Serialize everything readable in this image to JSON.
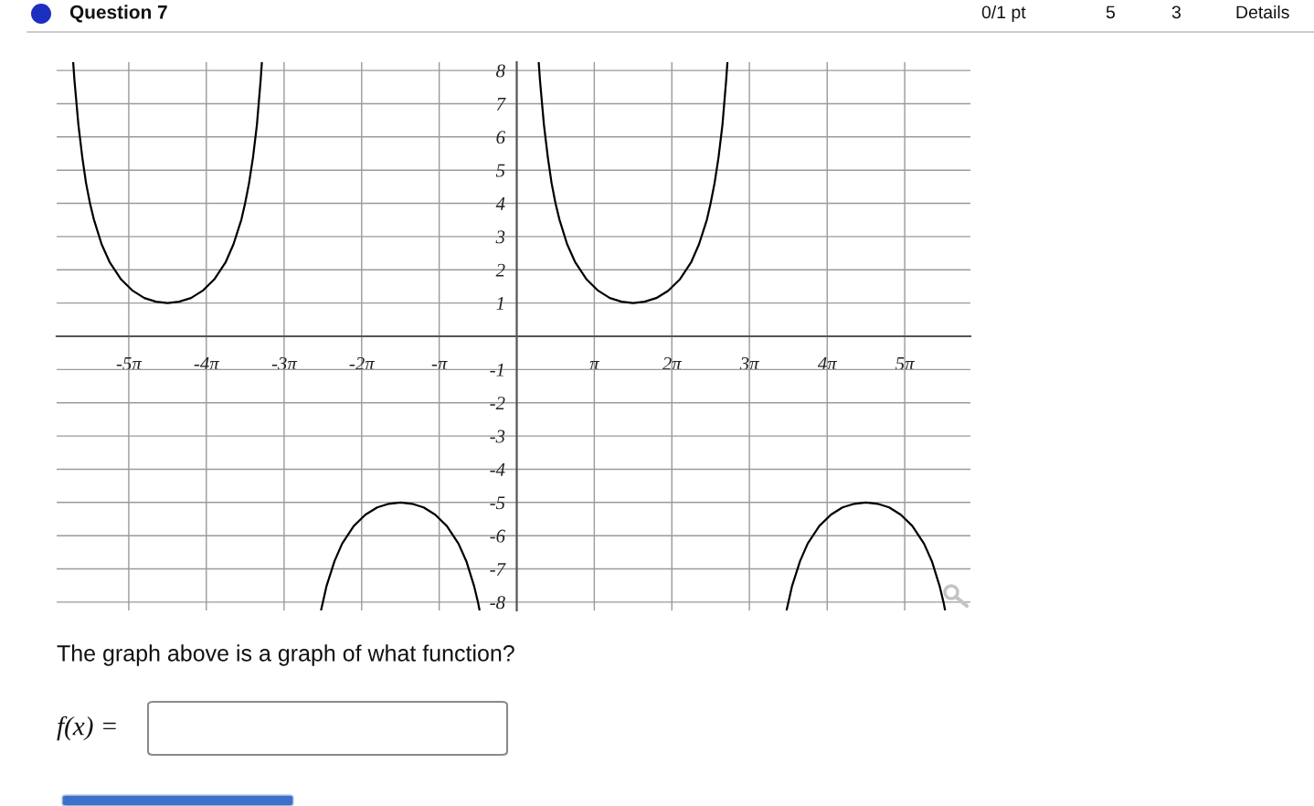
{
  "chart_data": {
    "type": "line",
    "xlim": [
      -18.63,
      18.37
    ],
    "ylim": [
      -8.25,
      8.25
    ],
    "xticks": [
      {
        "value": -15.71,
        "label": "-5π"
      },
      {
        "value": -12.57,
        "label": "-4π"
      },
      {
        "value": -9.42,
        "label": "-3π"
      },
      {
        "value": -6.28,
        "label": "-2π"
      },
      {
        "value": -3.14,
        "label": "-π"
      },
      {
        "value": 3.14,
        "label": "π"
      },
      {
        "value": 6.28,
        "label": "2π"
      },
      {
        "value": 9.42,
        "label": "3π"
      },
      {
        "value": 12.57,
        "label": "4π"
      },
      {
        "value": 15.71,
        "label": "5π"
      }
    ],
    "yticks": [
      -8,
      -7,
      -6,
      -5,
      -4,
      -3,
      -2,
      -1,
      1,
      2,
      3,
      4,
      5,
      6,
      7,
      8
    ],
    "grid": true,
    "series": [
      {
        "color": "#000000",
        "x": [
          -17.96,
          -17.91,
          -17.75,
          -17.59,
          -17.44,
          -17.28,
          -17.12,
          -16.81,
          -16.49,
          -16.02,
          -15.55,
          -15.08,
          -14.61,
          -14.14,
          -13.67,
          -13.19,
          -12.72,
          -12.25,
          -11.78,
          -11.47,
          -11.15,
          -11.0,
          -10.84,
          -10.68,
          -10.52,
          -10.37,
          -10.32
        ],
        "values": [
          8.24,
          7.71,
          6.37,
          5.38,
          4.61,
          4,
          3.51,
          2.77,
          2.24,
          1.71,
          1.37,
          1.15,
          1.04,
          1,
          1.04,
          1.15,
          1.37,
          1.71,
          2.24,
          2.77,
          3.51,
          4,
          4.61,
          5.38,
          6.37,
          7.71,
          8.24
        ]
      },
      {
        "color": "#000000",
        "x": [
          -7.92,
          -7.85,
          -7.7,
          -7.38,
          -7.07,
          -6.6,
          -6.13,
          -5.65,
          -5.18,
          -4.71,
          -4.24,
          -3.77,
          -3.3,
          -2.83,
          -2.36,
          -2.04,
          -1.73,
          -1.57,
          -1.51
        ],
        "values": [
          -8.23,
          -8,
          -7.51,
          -6.77,
          -6.24,
          -5.71,
          -5.37,
          -5.15,
          -5.04,
          -5,
          -5.04,
          -5.15,
          -5.37,
          -5.71,
          -6.24,
          -6.77,
          -7.51,
          -8,
          -8.23
        ]
      },
      {
        "color": "#000000",
        "x": [
          0.89,
          0.94,
          1.1,
          1.26,
          1.41,
          1.57,
          1.73,
          2.04,
          2.36,
          2.83,
          3.3,
          3.77,
          4.24,
          4.71,
          5.18,
          5.65,
          6.13,
          6.6,
          7.07,
          7.38,
          7.7,
          7.85,
          8.01,
          8.17,
          8.33,
          8.48,
          8.53
        ],
        "values": [
          8.24,
          7.71,
          6.37,
          5.38,
          4.61,
          4,
          3.51,
          2.77,
          2.24,
          1.71,
          1.37,
          1.15,
          1.04,
          1,
          1.04,
          1.15,
          1.37,
          1.71,
          2.24,
          2.77,
          3.51,
          4,
          4.61,
          5.38,
          6.37,
          7.71,
          8.24
        ]
      },
      {
        "color": "#000000",
        "x": [
          10.93,
          11.0,
          11.15,
          11.47,
          11.78,
          12.25,
          12.72,
          13.19,
          13.67,
          14.14,
          14.61,
          15.08,
          15.55,
          16.02,
          16.49,
          16.81,
          17.12,
          17.28,
          17.34
        ],
        "values": [
          -8.23,
          -8,
          -7.51,
          -6.77,
          -6.24,
          -5.71,
          -5.37,
          -5.15,
          -5.04,
          -5,
          -5.04,
          -5.15,
          -5.37,
          -5.71,
          -6.24,
          -6.77,
          -7.51,
          -8,
          -8.23
        ]
      }
    ],
    "annotations": [
      "Question 7",
      "0/1 pt",
      "5",
      "3",
      "Details",
      "The graph above is a graph of what function?",
      "f(x) ="
    ]
  }
}
